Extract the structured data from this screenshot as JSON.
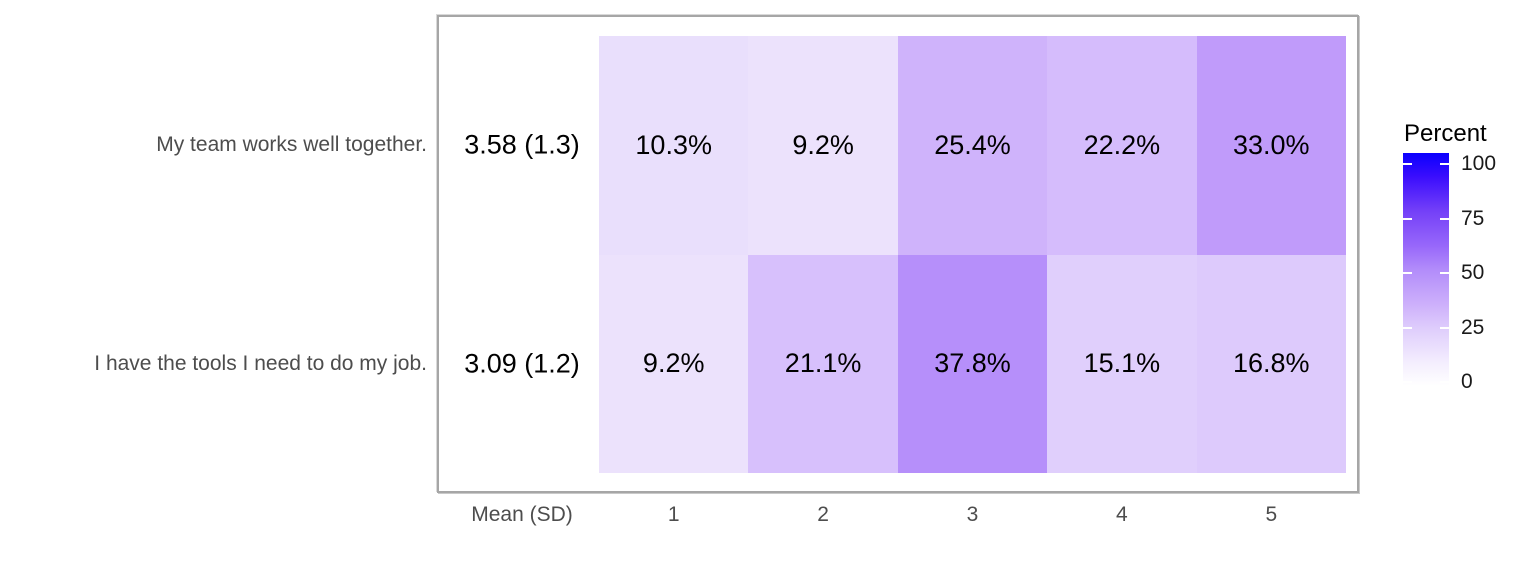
{
  "chart_data": {
    "type": "heatmap",
    "description": "Survey item heatmap: rows are statements, columns are Mean (SD) plus response options 1-5, cell values are percent of respondents, fill mapped to Percent on a white-to-blue gradient.",
    "x_categories": [
      "Mean (SD)",
      "1",
      "2",
      "3",
      "4",
      "5"
    ],
    "x_axis_mean_label": "Mean (SD)",
    "rows": [
      {
        "label": "My team works well together.",
        "mean_sd": "3.58 (1.3)",
        "values": [
          10.3,
          9.2,
          25.4,
          22.2,
          33.0
        ],
        "cells": [
          {
            "text": "10.3%",
            "color": "#E9DFFC"
          },
          {
            "text": "9.2%",
            "color": "#ECE2FC"
          },
          {
            "text": "25.4%",
            "color": "#CFB3FB"
          },
          {
            "text": "22.2%",
            "color": "#D5BCFC"
          },
          {
            "text": "33.0%",
            "color": "#C09BFA"
          }
        ]
      },
      {
        "label": "I have the tools I need to do my job.",
        "mean_sd": "3.09 (1.2)",
        "values": [
          9.2,
          21.1,
          37.8,
          15.1,
          16.8
        ],
        "cells": [
          {
            "text": "9.2%",
            "color": "#ECE2FC"
          },
          {
            "text": "21.1%",
            "color": "#D7C0FC"
          },
          {
            "text": "37.8%",
            "color": "#B68FFA"
          },
          {
            "text": "15.1%",
            "color": "#E0CFFC"
          },
          {
            "text": "16.8%",
            "color": "#DDCAFC"
          }
        ]
      }
    ],
    "legend": {
      "title": "Percent",
      "ticks": [
        100,
        75,
        50,
        25,
        0
      ],
      "range": [
        0,
        100
      ],
      "gradient_stops": [
        {
          "value": 100,
          "color": "#0B00FE"
        },
        {
          "value": 90,
          "color": "#3A0DFD"
        },
        {
          "value": 75,
          "color": "#7440F8"
        },
        {
          "value": 60,
          "color": "#9868FA"
        },
        {
          "value": 50,
          "color": "#B28CFA"
        },
        {
          "value": 35,
          "color": "#CDB0FB"
        },
        {
          "value": 25,
          "color": "#DECCFC"
        },
        {
          "value": 10,
          "color": "#F4EEFE"
        },
        {
          "value": 0,
          "color": "#FFFFFF"
        }
      ]
    },
    "colors": {
      "low": "#FFFFFF",
      "high": "#0B00FE",
      "panel_border": "#A6A6A6",
      "axis_text": "#4D4D4D",
      "cell_text": "#000000"
    }
  }
}
